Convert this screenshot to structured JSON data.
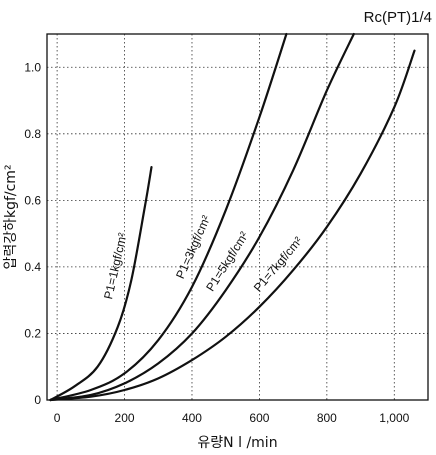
{
  "corner_label": "Rc(PT)1/4",
  "chart_data": {
    "type": "line",
    "xlabel": "유량N l /min",
    "ylabel": "압력강하kgf/cm²",
    "xlim": [
      -30,
      1100
    ],
    "ylim": [
      0,
      1.1
    ],
    "x_ticks": [
      0,
      200,
      400,
      600,
      800,
      1000
    ],
    "x_tick_labels": [
      "0",
      "200",
      "400",
      "600",
      "800",
      "1,000"
    ],
    "y_ticks": [
      0,
      0.2,
      0.4,
      0.6,
      0.8,
      1.0
    ],
    "y_tick_labels": [
      "0",
      "0.2",
      "0.4",
      "0.6",
      "0.8",
      "1.0"
    ],
    "grid": true,
    "series": [
      {
        "name": "P1=1kgf/cm²",
        "x": [
          -20,
          50,
          120,
          180,
          220,
          260,
          280
        ],
        "y": [
          0,
          0.04,
          0.1,
          0.22,
          0.36,
          0.58,
          0.7
        ]
      },
      {
        "name": "P1=3kgf/cm²",
        "x": [
          -20,
          100,
          200,
          300,
          400,
          500,
          600,
          680
        ],
        "y": [
          0,
          0.03,
          0.08,
          0.18,
          0.34,
          0.57,
          0.85,
          1.1
        ]
      },
      {
        "name": "P1=5kgf/cm²",
        "x": [
          -20,
          100,
          200,
          300,
          400,
          500,
          600,
          700,
          800,
          880
        ],
        "y": [
          0,
          0.015,
          0.05,
          0.11,
          0.2,
          0.33,
          0.49,
          0.69,
          0.93,
          1.1
        ]
      },
      {
        "name": "P1=7kgf/cm²",
        "x": [
          -20,
          100,
          200,
          300,
          400,
          500,
          600,
          700,
          800,
          900,
          1000,
          1060
        ],
        "y": [
          0,
          0.01,
          0.03,
          0.065,
          0.12,
          0.19,
          0.28,
          0.39,
          0.52,
          0.68,
          0.88,
          1.05
        ]
      }
    ]
  }
}
